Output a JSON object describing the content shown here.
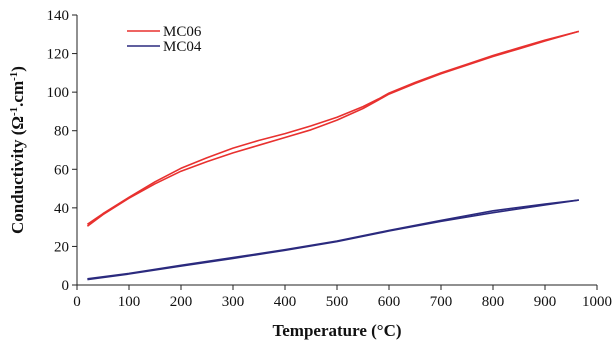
{
  "chart_data": {
    "type": "line",
    "title": "",
    "xlabel": "Temperature (°C)",
    "ylabel_parts": {
      "before": "Conductivity (Ω",
      "sup1": "-1",
      "middle": ".cm",
      "sup2": "-1",
      "after": ")"
    },
    "xlim": [
      0,
      1000
    ],
    "ylim": [
      0,
      140
    ],
    "x_ticks": [
      0,
      100,
      200,
      300,
      400,
      500,
      600,
      700,
      800,
      900,
      1000
    ],
    "y_ticks": [
      0,
      20,
      40,
      60,
      80,
      100,
      120,
      140
    ],
    "grid": false,
    "legend_position": "top-left",
    "series": [
      {
        "name": "MC06",
        "color": "#e8312f",
        "segments": [
          [
            [
              20,
              30.5
            ],
            [
              50,
              36.5
            ],
            [
              100,
              45
            ],
            [
              150,
              52.5
            ],
            [
              200,
              59
            ],
            [
              250,
              64
            ],
            [
              300,
              68.5
            ],
            [
              350,
              72.5
            ],
            [
              400,
              76.5
            ],
            [
              450,
              80.5
            ],
            [
              500,
              85.5
            ],
            [
              550,
              91.5
            ],
            [
              580,
              96
            ],
            [
              600,
              99
            ],
            [
              650,
              104.5
            ],
            [
              700,
              109.5
            ],
            [
              750,
              114
            ],
            [
              800,
              118.5
            ],
            [
              850,
              122.5
            ],
            [
              900,
              126.5
            ],
            [
              965,
              131.5
            ]
          ],
          [
            [
              965,
              131.5
            ],
            [
              900,
              127
            ],
            [
              850,
              123
            ],
            [
              800,
              119
            ],
            [
              750,
              114.5
            ],
            [
              700,
              110
            ],
            [
              650,
              105
            ],
            [
              600,
              99.5
            ],
            [
              580,
              96.5
            ],
            [
              550,
              92.5
            ],
            [
              500,
              87
            ],
            [
              450,
              82.5
            ],
            [
              400,
              78.5
            ],
            [
              350,
              75
            ],
            [
              300,
              71
            ],
            [
              250,
              66
            ],
            [
              200,
              60.5
            ],
            [
              150,
              53.5
            ],
            [
              100,
              45.5
            ],
            [
              50,
              37
            ],
            [
              20,
              31.5
            ]
          ]
        ]
      },
      {
        "name": "MC04",
        "color": "#2b2a7e",
        "segments": [
          [
            [
              20,
              2.8
            ],
            [
              100,
              5.7
            ],
            [
              200,
              9.8
            ],
            [
              300,
              13.8
            ],
            [
              400,
              18
            ],
            [
              500,
              22.5
            ],
            [
              600,
              28
            ],
            [
              700,
              33
            ],
            [
              800,
              37.5
            ],
            [
              900,
              41.5
            ],
            [
              965,
              44
            ]
          ],
          [
            [
              965,
              44
            ],
            [
              900,
              42
            ],
            [
              800,
              38.5
            ],
            [
              700,
              33.5
            ],
            [
              600,
              28.3
            ],
            [
              500,
              22.8
            ],
            [
              400,
              18.3
            ],
            [
              300,
              14.2
            ],
            [
              200,
              10.2
            ],
            [
              100,
              6
            ],
            [
              20,
              3.2
            ]
          ]
        ]
      }
    ]
  }
}
